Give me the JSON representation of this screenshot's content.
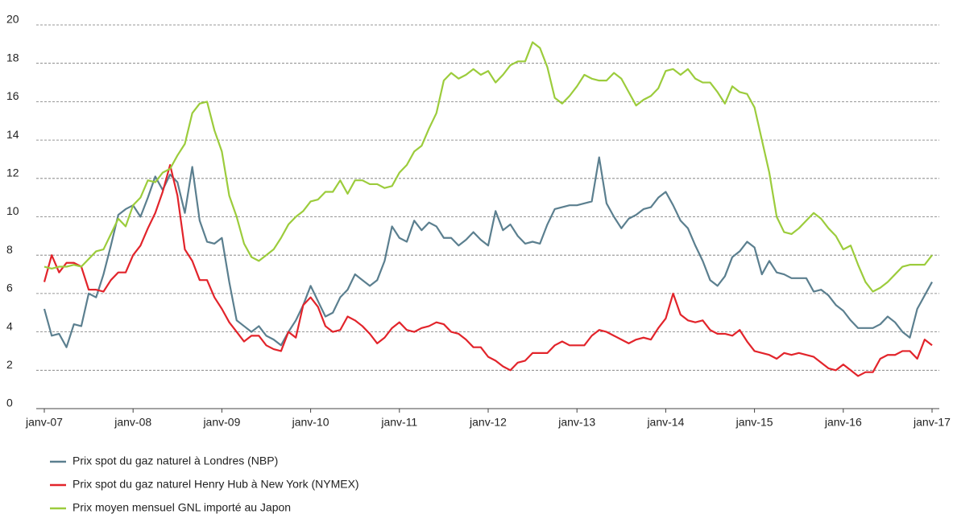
{
  "chart_data": {
    "type": "line",
    "categories": [
      "janv-07",
      null,
      null,
      null,
      null,
      null,
      null,
      null,
      null,
      null,
      null,
      null,
      "janv-08",
      null,
      null,
      null,
      null,
      null,
      null,
      null,
      null,
      null,
      null,
      null,
      "janv-09",
      null,
      null,
      null,
      null,
      null,
      null,
      null,
      null,
      null,
      null,
      null,
      "janv-10",
      null,
      null,
      null,
      null,
      null,
      null,
      null,
      null,
      null,
      null,
      null,
      "janv-11",
      null,
      null,
      null,
      null,
      null,
      null,
      null,
      null,
      null,
      null,
      null,
      "janv-12",
      null,
      null,
      null,
      null,
      null,
      null,
      null,
      null,
      null,
      null,
      null,
      "janv-13",
      null,
      null,
      null,
      null,
      null,
      null,
      null,
      null,
      null,
      null,
      null,
      "janv-14",
      null,
      null,
      null,
      null,
      null,
      null,
      null,
      null,
      null,
      null,
      null,
      "janv-15",
      null,
      null,
      null,
      null,
      null,
      null,
      null,
      null,
      null,
      null,
      null,
      "janv-16",
      null,
      null,
      null,
      null,
      null,
      null,
      null,
      null,
      null,
      null,
      null,
      "janv-17"
    ],
    "series": [
      {
        "name": "Prix spot du gaz naturel à Londres (NBP)",
        "color": "#5b7f8f",
        "values": [
          5.2,
          3.8,
          3.9,
          3.2,
          4.4,
          4.3,
          6.0,
          5.8,
          7.0,
          8.5,
          10.1,
          10.4,
          10.6,
          10.0,
          11.0,
          12.1,
          11.4,
          12.2,
          11.8,
          10.2,
          12.6,
          9.8,
          8.7,
          8.6,
          8.9,
          6.6,
          4.6,
          4.3,
          4.0,
          4.3,
          3.8,
          3.6,
          3.3,
          4.0,
          4.6,
          5.4,
          6.4,
          5.6,
          4.8,
          5.0,
          5.8,
          6.2,
          7.0,
          6.7,
          6.4,
          6.7,
          7.7,
          9.5,
          8.9,
          8.7,
          9.8,
          9.3,
          9.7,
          9.5,
          8.9,
          8.9,
          8.5,
          8.8,
          9.2,
          8.8,
          8.5,
          10.3,
          9.3,
          9.6,
          9.0,
          8.6,
          8.7,
          8.6,
          9.6,
          10.4,
          10.5,
          10.6,
          10.6,
          10.7,
          10.8,
          13.1,
          10.7,
          10.0,
          9.4,
          9.9,
          10.1,
          10.4,
          10.5,
          11.0,
          11.3,
          10.6,
          9.8,
          9.4,
          8.5,
          7.7,
          6.7,
          6.4,
          6.9,
          7.9,
          8.2,
          8.7,
          8.4,
          7.0,
          7.7,
          7.1,
          7.0,
          6.8,
          6.8,
          6.8,
          6.1,
          6.2,
          5.9,
          5.4,
          5.1,
          4.6,
          4.2,
          4.2,
          4.2,
          4.4,
          4.8,
          4.5,
          4.0,
          3.7,
          5.2,
          5.9,
          6.6
        ]
      },
      {
        "name": "Prix spot du gaz naturel Henry Hub à New York (NYMEX)",
        "color": "#e2242b",
        "values": [
          6.6,
          8.0,
          7.1,
          7.6,
          7.6,
          7.4,
          6.2,
          6.2,
          6.1,
          6.7,
          7.1,
          7.1,
          8.0,
          8.5,
          9.4,
          10.2,
          11.3,
          12.7,
          11.1,
          8.3,
          7.7,
          6.7,
          6.7,
          5.8,
          5.2,
          4.5,
          4.0,
          3.5,
          3.8,
          3.8,
          3.3,
          3.1,
          3.0,
          4.0,
          3.7,
          5.4,
          5.8,
          5.3,
          4.3,
          4.0,
          4.1,
          4.8,
          4.6,
          4.3,
          3.9,
          3.4,
          3.7,
          4.2,
          4.5,
          4.1,
          4.0,
          4.2,
          4.3,
          4.5,
          4.4,
          4.0,
          3.9,
          3.6,
          3.2,
          3.2,
          2.7,
          2.5,
          2.2,
          2.0,
          2.4,
          2.5,
          2.9,
          2.9,
          2.9,
          3.3,
          3.5,
          3.3,
          3.3,
          3.3,
          3.8,
          4.1,
          4.0,
          3.8,
          3.6,
          3.4,
          3.6,
          3.7,
          3.6,
          4.2,
          4.7,
          6.0,
          4.9,
          4.6,
          4.5,
          4.6,
          4.1,
          3.9,
          3.9,
          3.8,
          4.1,
          3.5,
          3.0,
          2.9,
          2.8,
          2.6,
          2.9,
          2.8,
          2.9,
          2.8,
          2.7,
          2.4,
          2.1,
          2.0,
          2.3,
          2.0,
          1.7,
          1.9,
          1.9,
          2.6,
          2.8,
          2.8,
          3.0,
          3.0,
          2.6,
          3.6,
          3.3
        ]
      },
      {
        "name": "Prix moyen mensuel GNL importé au Japon",
        "color": "#9ccc3c",
        "values": [
          7.4,
          7.3,
          7.4,
          7.4,
          7.5,
          7.4,
          7.8,
          8.2,
          8.3,
          9.1,
          9.9,
          9.5,
          10.6,
          11.0,
          11.9,
          11.8,
          12.3,
          12.5,
          13.2,
          13.8,
          15.4,
          15.9,
          16.0,
          14.5,
          13.4,
          11.1,
          10.0,
          8.6,
          7.9,
          7.7,
          8.0,
          8.3,
          8.9,
          9.6,
          10.0,
          10.3,
          10.8,
          10.9,
          11.3,
          11.3,
          11.9,
          11.2,
          11.9,
          11.9,
          11.7,
          11.7,
          11.5,
          11.6,
          12.3,
          12.7,
          13.4,
          13.7,
          14.6,
          15.4,
          17.1,
          17.5,
          17.2,
          17.4,
          17.7,
          17.4,
          17.6,
          17.0,
          17.4,
          17.9,
          18.1,
          18.1,
          19.1,
          18.8,
          17.8,
          16.2,
          15.9,
          16.3,
          16.8,
          17.4,
          17.2,
          17.1,
          17.1,
          17.5,
          17.2,
          16.5,
          15.8,
          16.1,
          16.3,
          16.7,
          17.6,
          17.7,
          17.4,
          17.7,
          17.2,
          17.0,
          17.0,
          16.5,
          15.9,
          16.8,
          16.5,
          16.4,
          15.7,
          14.0,
          12.3,
          10.0,
          9.2,
          9.1,
          9.4,
          9.8,
          10.2,
          9.9,
          9.4,
          9.0,
          8.3,
          8.5,
          7.5,
          6.6,
          6.1,
          6.3,
          6.6,
          7.0,
          7.4,
          7.5,
          7.5,
          7.5,
          8.0
        ]
      }
    ],
    "ylim": [
      0,
      20
    ],
    "yticks": [
      0,
      2,
      4,
      6,
      8,
      10,
      12,
      14,
      16,
      18,
      20
    ],
    "grid": true,
    "legend": "bottom"
  }
}
